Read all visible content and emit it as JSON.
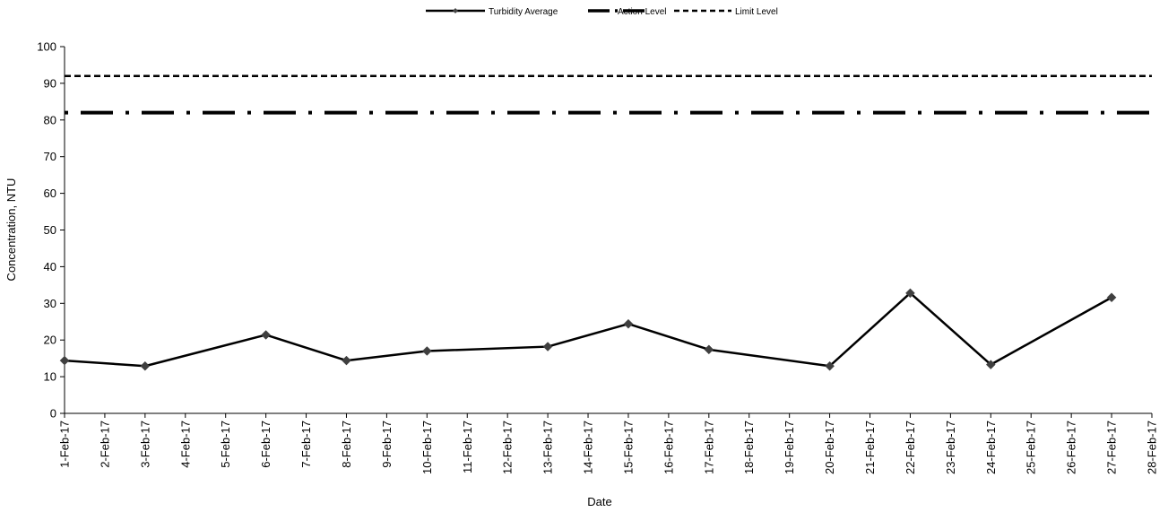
{
  "chart_data": {
    "type": "line",
    "title": "",
    "xlabel": "Date",
    "ylabel": "Concentration, NTU",
    "ylim": [
      0,
      100
    ],
    "yticks": [
      0,
      10,
      20,
      30,
      40,
      50,
      60,
      70,
      80,
      90,
      100
    ],
    "x_categories": [
      "1-Feb-17",
      "2-Feb-17",
      "3-Feb-17",
      "4-Feb-17",
      "5-Feb-17",
      "6-Feb-17",
      "7-Feb-17",
      "8-Feb-17",
      "9-Feb-17",
      "10-Feb-17",
      "11-Feb-17",
      "12-Feb-17",
      "13-Feb-17",
      "14-Feb-17",
      "15-Feb-17",
      "16-Feb-17",
      "17-Feb-17",
      "18-Feb-17",
      "19-Feb-17",
      "20-Feb-17",
      "21-Feb-17",
      "22-Feb-17",
      "23-Feb-17",
      "24-Feb-17",
      "25-Feb-17",
      "26-Feb-17",
      "27-Feb-17",
      "28-Feb-17"
    ],
    "grid": false,
    "legend_position": "top-center",
    "series": [
      {
        "name": "Turbidity Average",
        "style": "solid-with-diamond-markers",
        "color": "#000000",
        "points": [
          {
            "x": "1-Feb-17",
            "y": 14.4
          },
          {
            "x": "3-Feb-17",
            "y": 12.9
          },
          {
            "x": "6-Feb-17",
            "y": 21.4
          },
          {
            "x": "8-Feb-17",
            "y": 14.4
          },
          {
            "x": "10-Feb-17",
            "y": 17.0
          },
          {
            "x": "13-Feb-17",
            "y": 18.2
          },
          {
            "x": "15-Feb-17",
            "y": 24.4
          },
          {
            "x": "17-Feb-17",
            "y": 17.4
          },
          {
            "x": "20-Feb-17",
            "y": 12.9
          },
          {
            "x": "22-Feb-17",
            "y": 32.8
          },
          {
            "x": "24-Feb-17",
            "y": 13.3
          },
          {
            "x": "27-Feb-17",
            "y": 31.6
          }
        ]
      },
      {
        "name": "Action Level",
        "style": "dash-dot",
        "color": "#000000",
        "constant": 82
      },
      {
        "name": "Limit Level",
        "style": "dashed",
        "color": "#000000",
        "constant": 92
      }
    ]
  }
}
